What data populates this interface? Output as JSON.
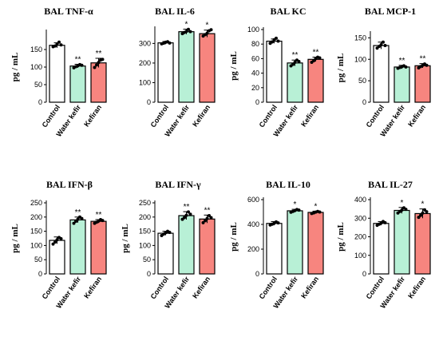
{
  "colors": {
    "Control": "#ffffff",
    "Water kefir": "#b8f0d6",
    "Kefiran": "#f7857f"
  },
  "chart_data": [
    {
      "type": "bar",
      "title": "BAL TNF-α",
      "ylabel": "pg / mL",
      "ylim": [
        0,
        200
      ],
      "yticks": [
        0,
        50,
        100,
        150
      ],
      "categories": [
        "Control",
        "Water kefir",
        "Kefiran"
      ],
      "values": [
        162,
        103,
        112
      ],
      "errors": [
        7,
        5,
        13
      ],
      "points": [
        [
          158,
          160,
          166,
          171,
          163
        ],
        [
          98,
          101,
          104,
          107,
          105
        ],
        [
          99,
          106,
          113,
          120,
          122
        ]
      ],
      "annotations": [
        "",
        "**",
        "**"
      ]
    },
    {
      "type": "bar",
      "title": "BAL IL-6",
      "ylabel": "",
      "ylim": [
        0,
        375
      ],
      "yticks": [
        0,
        100,
        200,
        300
      ],
      "categories": [
        "Control",
        "Water kefir",
        "Kefiran"
      ],
      "values": [
        303,
        360,
        350
      ],
      "errors": [
        7,
        13,
        18
      ],
      "points": [
        [
          298,
          301,
          306,
          309,
          302
        ],
        [
          350,
          356,
          362,
          372,
          360
        ],
        [
          338,
          345,
          352,
          365,
          370
        ]
      ],
      "annotations": [
        "",
        "*",
        "*"
      ]
    },
    {
      "type": "bar",
      "title": "BAL KC",
      "ylabel": "pg / mL",
      "ylim": [
        0,
        100
      ],
      "yticks": [
        0,
        20,
        40,
        60,
        80,
        100
      ],
      "categories": [
        "Control",
        "Water kefir",
        "Kefiran"
      ],
      "values": [
        84,
        54,
        59
      ],
      "errors": [
        3,
        4,
        3
      ],
      "points": [
        [
          81,
          83,
          86,
          88,
          84
        ],
        [
          50,
          52,
          55,
          58,
          56
        ],
        [
          55,
          57,
          60,
          62,
          61
        ]
      ],
      "annotations": [
        "",
        "**",
        "**"
      ]
    },
    {
      "type": "bar",
      "title": "BAL MCP-1",
      "ylabel": "pg / mL",
      "ylim": [
        0,
        160
      ],
      "yticks": [
        0,
        50,
        100,
        150
      ],
      "categories": [
        "Control",
        "Water kefir",
        "Kefiran"
      ],
      "values": [
        132,
        82,
        85
      ],
      "errors": [
        8,
        4,
        5
      ],
      "points": [
        [
          126,
          130,
          134,
          140,
          132
        ],
        [
          79,
          81,
          83,
          85,
          82
        ],
        [
          80,
          83,
          86,
          89,
          86
        ]
      ],
      "annotations": [
        "",
        "**",
        "**"
      ]
    },
    {
      "type": "bar",
      "title": "BAL IFN-β",
      "ylabel": "pg / mL",
      "ylim": [
        0,
        250
      ],
      "yticks": [
        0,
        50,
        100,
        150,
        200,
        250
      ],
      "categories": [
        "Control",
        "Water kefir",
        "Kefiran"
      ],
      "values": [
        118,
        190,
        185
      ],
      "errors": [
        12,
        10,
        6
      ],
      "points": [
        [
          105,
          112,
          120,
          128,
          124
        ],
        [
          178,
          185,
          192,
          200,
          195
        ],
        [
          178,
          182,
          186,
          191,
          188
        ]
      ],
      "annotations": [
        "",
        "**",
        "**"
      ]
    },
    {
      "type": "bar",
      "title": "BAL IFN-γ",
      "ylabel": "pg / mL",
      "ylim": [
        0,
        250
      ],
      "yticks": [
        0,
        50,
        100,
        150,
        200,
        250
      ],
      "categories": [
        "Control",
        "Water kefir",
        "Kefiran"
      ],
      "values": [
        143,
        205,
        193
      ],
      "errors": [
        7,
        14,
        14
      ],
      "points": [
        [
          135,
          140,
          145,
          150,
          146
        ],
        [
          192,
          198,
          206,
          218,
          210
        ],
        [
          180,
          187,
          195,
          205,
          198
        ]
      ],
      "annotations": [
        "",
        "**",
        "**"
      ]
    },
    {
      "type": "bar",
      "title": "BAL IL-10",
      "ylabel": "pg / mL",
      "ylim": [
        0,
        600
      ],
      "yticks": [
        0,
        200,
        400,
        600
      ],
      "categories": [
        "Control",
        "Water kefir",
        "Kefiran"
      ],
      "values": [
        408,
        510,
        497
      ],
      "errors": [
        15,
        12,
        10
      ],
      "points": [
        [
          395,
          402,
          410,
          420,
          412
        ],
        [
          498,
          505,
          512,
          520,
          515
        ],
        [
          488,
          493,
          499,
          505,
          500
        ]
      ],
      "annotations": [
        "",
        "*",
        "*"
      ]
    },
    {
      "type": "bar",
      "title": "BAL IL-27",
      "ylabel": "pg / mL",
      "ylim": [
        0,
        400
      ],
      "yticks": [
        0,
        100,
        200,
        300,
        400
      ],
      "categories": [
        "Control",
        "Water kefir",
        "Kefiran"
      ],
      "values": [
        272,
        342,
        325
      ],
      "errors": [
        10,
        16,
        25
      ],
      "points": [
        [
          262,
          268,
          274,
          282,
          276
        ],
        [
          328,
          336,
          344,
          356,
          348
        ],
        [
          305,
          315,
          328,
          345,
          335
        ]
      ],
      "annotations": [
        "",
        "*",
        "*"
      ]
    }
  ]
}
